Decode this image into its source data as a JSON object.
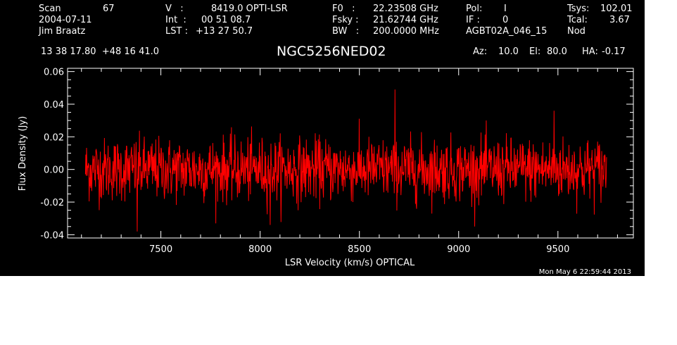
{
  "header": {
    "scan_label": "Scan",
    "scan_number": "67",
    "date": "2004-07-11",
    "observer": "Jim Braatz",
    "v_label": "V   :",
    "v_value": "8419.0 OPTI-LSR",
    "int_label": "Int  :",
    "int_value": "00 51 08.7",
    "lst_label": "LST :",
    "lst_value": "+13 27 50.7",
    "f0_label": "F0   :",
    "f0_value": "22.23508 GHz",
    "fsky_label": "Fsky :",
    "fsky_value": "21.62744 GHz",
    "bw_label": "BW   :",
    "bw_value": "200.0000 MHz",
    "pol_label": "Pol:",
    "pol_value": "I",
    "if_label": "IF :",
    "if_value": "0",
    "project": "AGBT02A_046_15",
    "tsys_label": "Tsys:",
    "tsys_value": "102.01",
    "tcal_label": "Tcal:",
    "tcal_value": "3.67",
    "mode": "Nod",
    "coords": "13 38 17.80  +48 16 41.0",
    "source": "NGC5256NED02",
    "az_label": "Az:",
    "az_value": "10.0",
    "el_label": "El:",
    "el_value": "80.0",
    "ha_label": "HA:",
    "ha_value": "-0.17"
  },
  "timestamp": "Mon May  6 22:59:44 2013",
  "colors": {
    "background": "#000000",
    "foreground": "#ffffff",
    "trace": "#ff0000",
    "page": "#ffffff"
  },
  "chart_data": {
    "type": "line",
    "title": "NGC5256NED02",
    "xlabel": "LSR Velocity (km/s) OPTICAL",
    "ylabel": "Flux Density (Jy)",
    "xlim": [
      7030,
      9880
    ],
    "ylim": [
      -0.042,
      0.062
    ],
    "xticks": [
      7500,
      8000,
      8500,
      9000,
      9500
    ],
    "xtick_labels": [
      "7500",
      "8000",
      "8500",
      "9000",
      "9500"
    ],
    "yticks": [
      -0.04,
      -0.02,
      0.0,
      0.02,
      0.04,
      0.06
    ],
    "ytick_labels": [
      "-0.04",
      "-0.02",
      "0.00",
      "0.02",
      "0.04",
      "0.06"
    ],
    "grid": false,
    "series": [
      {
        "x_start": 7120,
        "x_end": 9745,
        "num_points": 1400,
        "mean": 0.0,
        "noise_rms": 0.0095,
        "y_min": -0.038,
        "y_max": 0.049,
        "spikes": [
          {
            "x": 8680,
            "y": 0.049
          },
          {
            "x": 8680,
            "y": -0.038
          },
          {
            "x": 7380,
            "y": -0.038
          },
          {
            "x": 9480,
            "y": 0.036
          },
          {
            "x": 8050,
            "y": -0.034
          }
        ]
      }
    ]
  }
}
